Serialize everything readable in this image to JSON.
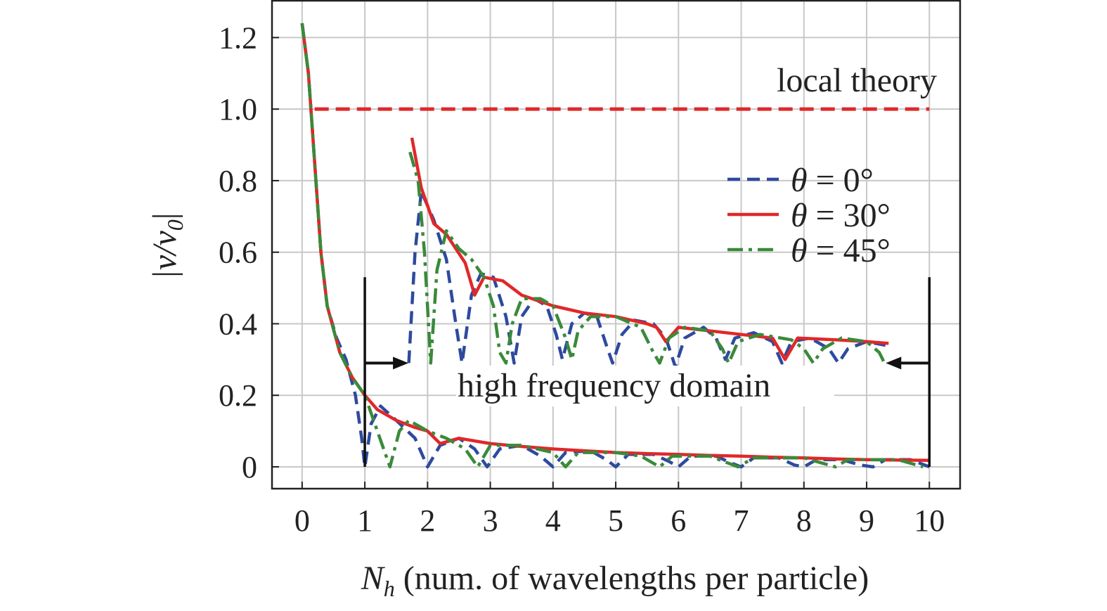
{
  "chart_data": {
    "type": "line",
    "title": "",
    "xlabel_symbol": "N",
    "xlabel_sub": "h",
    "xlabel_rest": " (num. of wavelengths per particle)",
    "ylabel_pre": "|v/v",
    "ylabel_sub": "0",
    "ylabel_post": "|",
    "xlim": [
      -0.48,
      10.49
    ],
    "ylim": [
      -0.061,
      1.305
    ],
    "grid": true,
    "legend_position": "right",
    "x_ticks": [
      0,
      1,
      2,
      3,
      4,
      5,
      6,
      7,
      8,
      9,
      10
    ],
    "x_tick_labels": [
      "0",
      "1",
      "2",
      "3",
      "4",
      "5",
      "6",
      "7",
      "8",
      "9",
      "10"
    ],
    "y_ticks": [
      0,
      0.2,
      0.4,
      0.6,
      0.8,
      1.0,
      1.2
    ],
    "y_tick_labels": [
      "0",
      "0.2",
      "0.4",
      "0.6",
      "0.8",
      "1.0",
      "1.2"
    ],
    "reference_line": {
      "label": "local theory",
      "y": 1.0,
      "x_range": [
        0.2,
        10
      ],
      "color": "#e0282a",
      "style": "dashed"
    },
    "annotation": {
      "label": "high frequency domain",
      "x_range": [
        1,
        10
      ],
      "arrow_y": 0.29,
      "bracket_top": 0.53
    },
    "series": [
      {
        "name": "θ = 0°",
        "color": "#2e4a9e",
        "style": "dashed",
        "segments": [
          [
            [
              0,
              1.24
            ],
            [
              0.1,
              1.1
            ],
            [
              0.2,
              0.85
            ],
            [
              0.3,
              0.6
            ],
            [
              0.4,
              0.45
            ],
            [
              0.55,
              0.36
            ],
            [
              0.7,
              0.3
            ],
            [
              0.85,
              0.2
            ],
            [
              0.95,
              0.08
            ],
            [
              1.0,
              0.0
            ],
            [
              1.1,
              0.12
            ],
            [
              1.25,
              0.17
            ],
            [
              1.5,
              0.13
            ],
            [
              1.8,
              0.08
            ],
            [
              2.0,
              0.0
            ],
            [
              2.2,
              0.06
            ],
            [
              2.5,
              0.08
            ],
            [
              2.75,
              0.05
            ],
            [
              2.95,
              0.0
            ],
            [
              3.15,
              0.05
            ],
            [
              3.5,
              0.06
            ],
            [
              3.8,
              0.03
            ],
            [
              4.0,
              0.0
            ],
            [
              4.2,
              0.04
            ],
            [
              4.6,
              0.045
            ],
            [
              4.85,
              0.02
            ],
            [
              5.0,
              0.0
            ],
            [
              5.2,
              0.035
            ],
            [
              5.6,
              0.035
            ],
            [
              5.85,
              0.015
            ],
            [
              6.0,
              0.0
            ],
            [
              6.2,
              0.03
            ],
            [
              6.6,
              0.03
            ],
            [
              6.85,
              0.01
            ],
            [
              7.0,
              0.0
            ],
            [
              7.2,
              0.025
            ],
            [
              7.6,
              0.025
            ],
            [
              7.85,
              0.005
            ],
            [
              8.0,
              0.0
            ],
            [
              8.2,
              0.02
            ],
            [
              8.6,
              0.02
            ],
            [
              8.9,
              0.005
            ],
            [
              9.1,
              0.0
            ],
            [
              9.3,
              0.02
            ],
            [
              9.7,
              0.02
            ],
            [
              10,
              0.0
            ]
          ],
          [
            [
              1.7,
              0.29
            ],
            [
              1.8,
              0.6
            ],
            [
              1.9,
              0.77
            ],
            [
              2.1,
              0.69
            ],
            [
              2.3,
              0.58
            ],
            [
              2.45,
              0.4
            ],
            [
              2.55,
              0.29
            ],
            [
              2.7,
              0.48
            ],
            [
              2.85,
              0.54
            ],
            [
              3.05,
              0.53
            ],
            [
              3.25,
              0.42
            ],
            [
              3.38,
              0.29
            ],
            [
              3.5,
              0.42
            ],
            [
              3.7,
              0.47
            ],
            [
              3.9,
              0.45
            ],
            [
              4.05,
              0.37
            ],
            [
              4.15,
              0.3
            ],
            [
              4.3,
              0.4
            ],
            [
              4.5,
              0.43
            ],
            [
              4.7,
              0.42
            ],
            [
              4.85,
              0.34
            ],
            [
              4.95,
              0.29
            ],
            [
              5.1,
              0.37
            ],
            [
              5.3,
              0.41
            ],
            [
              5.6,
              0.4
            ],
            [
              5.8,
              0.36
            ],
            [
              5.95,
              0.28
            ],
            [
              6.1,
              0.36
            ],
            [
              6.4,
              0.39
            ],
            [
              6.6,
              0.36
            ],
            [
              6.75,
              0.3
            ],
            [
              6.9,
              0.36
            ],
            [
              7.2,
              0.375
            ],
            [
              7.5,
              0.35
            ],
            [
              7.65,
              0.29
            ],
            [
              7.8,
              0.35
            ],
            [
              8.1,
              0.36
            ],
            [
              8.4,
              0.33
            ],
            [
              8.55,
              0.29
            ],
            [
              8.7,
              0.33
            ],
            [
              9.0,
              0.35
            ],
            [
              9.3,
              0.34
            ]
          ]
        ]
      },
      {
        "name": "θ = 30°",
        "color": "#e0282a",
        "style": "solid",
        "segments": [
          [
            [
              0,
              1.24
            ],
            [
              0.1,
              1.1
            ],
            [
              0.2,
              0.85
            ],
            [
              0.3,
              0.6
            ],
            [
              0.4,
              0.45
            ],
            [
              0.6,
              0.32
            ],
            [
              0.8,
              0.25
            ],
            [
              1.0,
              0.2
            ],
            [
              1.2,
              0.16
            ],
            [
              1.5,
              0.13
            ],
            [
              1.8,
              0.11
            ],
            [
              2.0,
              0.1
            ],
            [
              2.2,
              0.065
            ],
            [
              2.5,
              0.08
            ],
            [
              3.0,
              0.065
            ],
            [
              3.5,
              0.057
            ],
            [
              4.0,
              0.05
            ],
            [
              4.5,
              0.045
            ],
            [
              5.0,
              0.04
            ],
            [
              5.5,
              0.037
            ],
            [
              6.0,
              0.035
            ],
            [
              6.5,
              0.032
            ],
            [
              7.0,
              0.03
            ],
            [
              7.5,
              0.027
            ],
            [
              8.0,
              0.025
            ],
            [
              8.5,
              0.022
            ],
            [
              9.0,
              0.02
            ],
            [
              10,
              0.018
            ]
          ],
          [
            [
              1.75,
              0.92
            ],
            [
              1.9,
              0.78
            ],
            [
              2.1,
              0.68
            ],
            [
              2.3,
              0.65
            ],
            [
              2.45,
              0.61
            ],
            [
              2.6,
              0.57
            ],
            [
              2.75,
              0.48
            ],
            [
              2.9,
              0.53
            ],
            [
              3.2,
              0.52
            ],
            [
              3.5,
              0.48
            ],
            [
              4.0,
              0.45
            ],
            [
              4.5,
              0.43
            ],
            [
              5.0,
              0.42
            ],
            [
              5.5,
              0.4
            ],
            [
              5.65,
              0.39
            ],
            [
              5.8,
              0.35
            ],
            [
              6.0,
              0.39
            ],
            [
              6.5,
              0.38
            ],
            [
              7.0,
              0.37
            ],
            [
              7.5,
              0.36
            ],
            [
              7.7,
              0.3
            ],
            [
              7.9,
              0.36
            ],
            [
              8.5,
              0.355
            ],
            [
              9.0,
              0.35
            ],
            [
              9.35,
              0.345
            ]
          ]
        ]
      },
      {
        "name": "θ = 45°",
        "color": "#3a8a3a",
        "style": "dashdot",
        "segments": [
          [
            [
              0,
              1.24
            ],
            [
              0.1,
              1.1
            ],
            [
              0.2,
              0.85
            ],
            [
              0.3,
              0.6
            ],
            [
              0.4,
              0.45
            ],
            [
              0.6,
              0.32
            ],
            [
              0.8,
              0.25
            ],
            [
              1.0,
              0.2
            ],
            [
              1.2,
              0.1
            ],
            [
              1.4,
              0.0
            ],
            [
              1.55,
              0.1
            ],
            [
              1.7,
              0.13
            ],
            [
              2.0,
              0.1
            ],
            [
              2.3,
              0.08
            ],
            [
              2.6,
              0.05
            ],
            [
              2.8,
              0.0
            ],
            [
              3.0,
              0.06
            ],
            [
              3.5,
              0.06
            ],
            [
              4.0,
              0.04
            ],
            [
              4.2,
              0.0
            ],
            [
              4.4,
              0.04
            ],
            [
              5.0,
              0.04
            ],
            [
              5.4,
              0.03
            ],
            [
              5.7,
              0.0
            ],
            [
              5.9,
              0.03
            ],
            [
              6.5,
              0.03
            ],
            [
              6.95,
              0.0
            ],
            [
              7.2,
              0.025
            ],
            [
              8.0,
              0.025
            ],
            [
              8.3,
              0.01
            ],
            [
              8.5,
              0.0
            ],
            [
              8.7,
              0.02
            ],
            [
              9.5,
              0.02
            ],
            [
              9.9,
              0.0
            ]
          ],
          [
            [
              1.72,
              0.88
            ],
            [
              1.85,
              0.8
            ],
            [
              1.95,
              0.6
            ],
            [
              2.05,
              0.29
            ],
            [
              2.15,
              0.55
            ],
            [
              2.3,
              0.66
            ],
            [
              2.5,
              0.61
            ],
            [
              2.7,
              0.58
            ],
            [
              2.9,
              0.53
            ],
            [
              3.05,
              0.45
            ],
            [
              3.15,
              0.32
            ],
            [
              3.25,
              0.29
            ],
            [
              3.35,
              0.4
            ],
            [
              3.5,
              0.47
            ],
            [
              3.8,
              0.47
            ],
            [
              4.0,
              0.45
            ],
            [
              4.2,
              0.36
            ],
            [
              4.3,
              0.3
            ],
            [
              4.4,
              0.38
            ],
            [
              4.6,
              0.42
            ],
            [
              5.0,
              0.42
            ],
            [
              5.4,
              0.39
            ],
            [
              5.6,
              0.32
            ],
            [
              5.7,
              0.29
            ],
            [
              5.85,
              0.36
            ],
            [
              6.1,
              0.39
            ],
            [
              6.5,
              0.38
            ],
            [
              6.7,
              0.33
            ],
            [
              6.8,
              0.29
            ],
            [
              6.95,
              0.35
            ],
            [
              7.3,
              0.37
            ],
            [
              7.8,
              0.355
            ],
            [
              8.0,
              0.33
            ],
            [
              8.15,
              0.29
            ],
            [
              8.3,
              0.33
            ],
            [
              8.6,
              0.36
            ],
            [
              9.0,
              0.35
            ],
            [
              9.2,
              0.32
            ],
            [
              9.3,
              0.285
            ]
          ]
        ]
      }
    ]
  }
}
